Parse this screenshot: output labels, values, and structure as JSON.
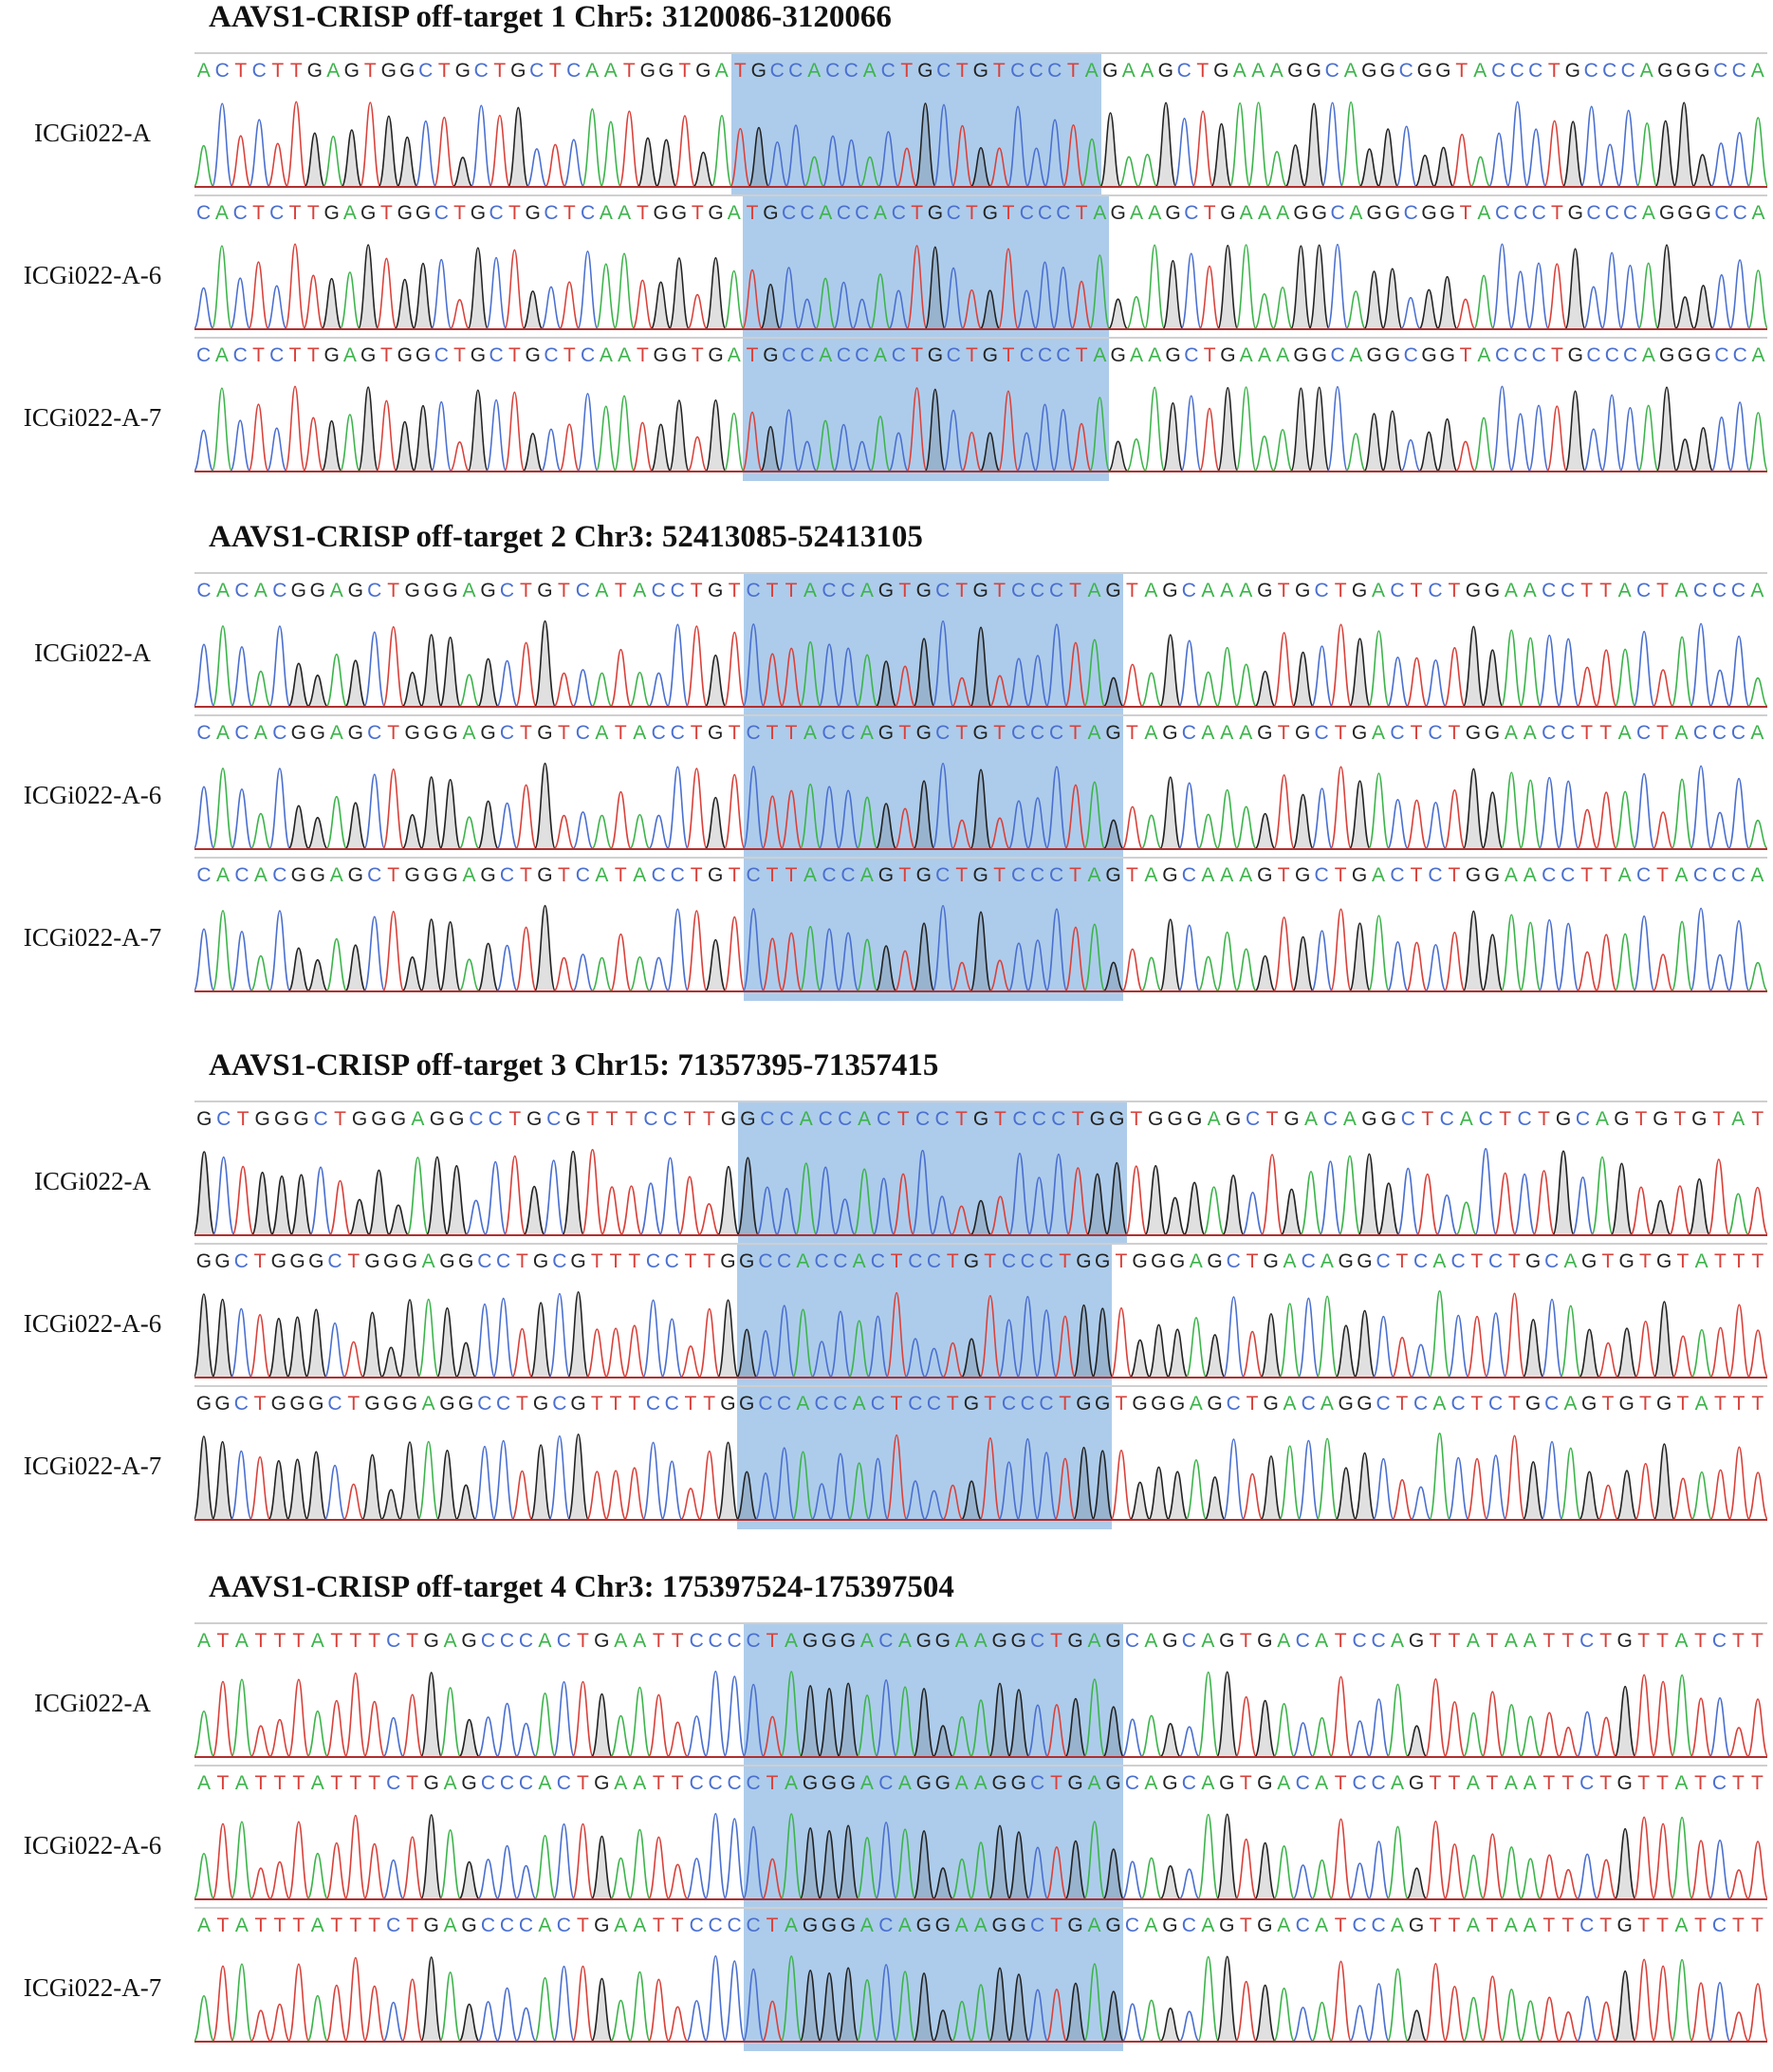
{
  "figure": {
    "sections": [
      {
        "title": "AAVS1-CRISP off-target 1 Chr5: 3120086-3120066",
        "highlight_start": 29,
        "highlight_len": 20,
        "rows": [
          {
            "label": "ICGi022-A",
            "sequence": "ACTCTTGAGTGGCTGCTGCTCAATGGTGATGCCACCACTGCTGTCCCTAGAAGCTGAAAGGCAGGCGGTACCCTGCCCAGGGCCA"
          },
          {
            "label": "ICGi022-A-6",
            "sequence": "CACTCTTGAGTGGCTGCTGCTCAATGGTGATGCCACCACTGCTGTCCCTAGAAGCTGAAAGGCAGGCGGTACCCTGCCCAGGGCCA"
          },
          {
            "label": "ICGi022-A-7",
            "sequence": "CACTCTTGAGTGGCTGCTGCTCAATGGTGATGCCACCACTGCTGTCCCTAGAAGCTGAAAGGCAGGCGGTACCCTGCCCAGGGCCA"
          }
        ]
      },
      {
        "title": "AAVS1-CRISP off-target 2 Chr3: 52413085-52413105",
        "highlight_start": 29,
        "highlight_len": 20,
        "rows": [
          {
            "label": "ICGi022-A",
            "sequence": "CACACGGAGCTGGGAGCTGTCATACCTGTCTTACCAGTGCTGTCCCTAGTAGCAAAGTGCTGACTCTGGAACCTTACTACCCA"
          },
          {
            "label": "ICGi022-A-6",
            "sequence": "CACACGGAGCTGGGAGCTGTCATACCTGTCTTACCAGTGCTGTCCCTAGTAGCAAAGTGCTGACTCTGGAACCTTACTACCCA"
          },
          {
            "label": "ICGi022-A-7",
            "sequence": "CACACGGAGCTGGGAGCTGTCATACCTGTCTTACCAGTGCTGTCCCTAGTAGCAAAGTGCTGACTCTGGAACCTTACTACCCA"
          }
        ]
      },
      {
        "title": "AAVS1-CRISP off-target 3 Chr15: 71357395-71357415",
        "highlight_start": 28,
        "highlight_len": 20,
        "rows": [
          {
            "label": "ICGi022-A",
            "sequence": "GCTGGGCTGGGAGGCCTGCGTTTCCTTGGCCACCACTCCTGTCCCTGGTGGGAGCTGACAGGCTCACTCTGCAGTGTGTAT"
          },
          {
            "label": "ICGi022-A-6",
            "sequence": "GGCTGGGCTGGGAGGCCTGCGTTTCCTTGGCCACCACTCCTGTCCCTGGTGGGAGCTGACAGGCTCACTCTGCAGTGTGTATTT"
          },
          {
            "label": "ICGi022-A-7",
            "sequence": "GGCTGGGCTGGGAGGCCTGCGTTTCCTTGGCCACCACTCCTGTCCCTGGTGGGAGCTGACAGGCTCACTCTGCAGTGTGTATTT"
          }
        ]
      },
      {
        "title": "AAVS1-CRISP off-target 4 Chr3: 175397524-175397504",
        "highlight_start": 29,
        "highlight_len": 20,
        "rows": [
          {
            "label": "ICGi022-A",
            "sequence": "ATATTTATTTCTGAGCCCACTGAATTCCCCTAGGGACAGGAAGGCTGAGCAGCAGTGACATCCAGTTATAATTCTGTTATCTT"
          },
          {
            "label": "ICGi022-A-6",
            "sequence": "ATATTTATTTCTGAGCCCACTGAATTCCCCTAGGGACAGGAAGGCTGAGCAGCAGTGACATCCAGTTATAATTCTGTTATCTT"
          },
          {
            "label": "ICGi022-A-7",
            "sequence": "ATATTTATTTCTGAGCCCACTGAATTCCCCTAGGGACAGGAAGGCTGAGCAGCAGTGACATCCAGTTATAATTCTGTTATCTT"
          }
        ]
      }
    ],
    "base_colors": {
      "A": "#3cb44b",
      "C": "#4a6fd0",
      "G": "#222222",
      "T": "#d9413a"
    },
    "highlight_color": "#a9c9ea"
  }
}
